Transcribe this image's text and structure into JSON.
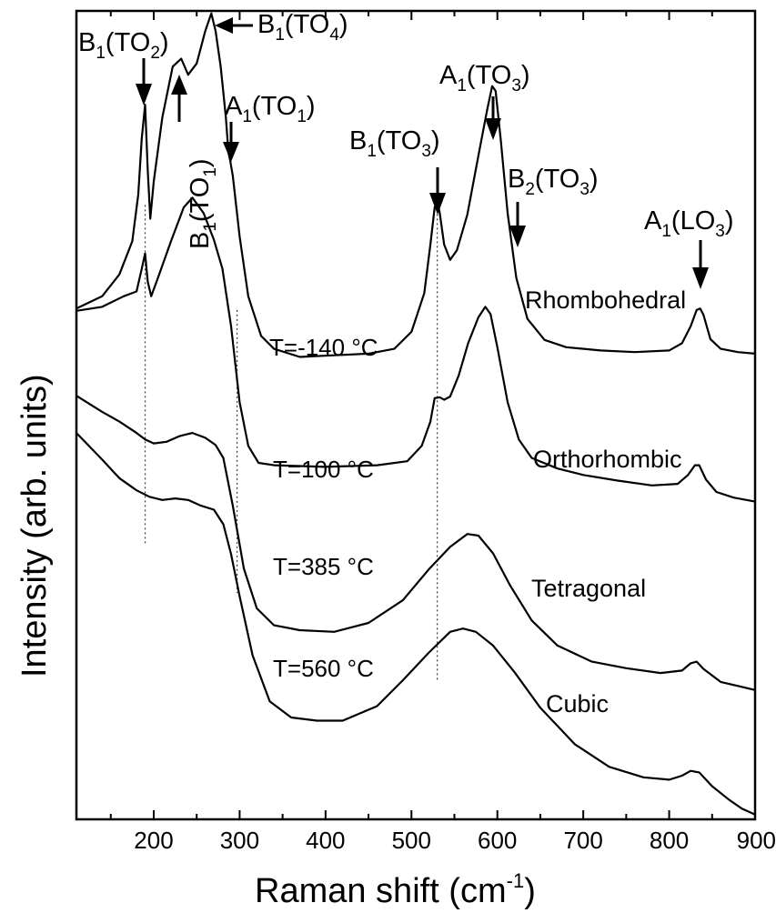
{
  "chart_data": {
    "type": "line",
    "title": "",
    "xlabel": "Raman shift (cm",
    "xlabel_sup": "-1",
    "xlabel_close": ")",
    "ylabel": "Intensity (arb. units)",
    "xlim": [
      110,
      900
    ],
    "ylim": [
      0,
      100
    ],
    "x_major_ticks": [
      200,
      300,
      400,
      500,
      600,
      700,
      800,
      900
    ],
    "x_tick_labels": [
      "200",
      "300",
      "400",
      "500",
      "600",
      "700",
      "800",
      "900"
    ],
    "x_minor_ticks": [
      150,
      250,
      350,
      450,
      550,
      650,
      750,
      850
    ],
    "yticks_shown": false,
    "grid": false,
    "guide_lines_x": [
      190,
      297,
      530
    ],
    "series": [
      {
        "name": "Rhombohedral",
        "condition": "T=-140 °C",
        "points": [
          [
            110,
            63.2
          ],
          [
            140,
            64.7
          ],
          [
            160,
            67.4
          ],
          [
            175,
            71.5
          ],
          [
            182,
            77.3
          ],
          [
            186,
            84.2
          ],
          [
            190,
            88.4
          ],
          [
            193,
            80.3
          ],
          [
            196,
            74.3
          ],
          [
            200,
            78.9
          ],
          [
            210,
            86.8
          ],
          [
            222,
            93.1
          ],
          [
            232,
            94.1
          ],
          [
            240,
            92.1
          ],
          [
            250,
            93.5
          ],
          [
            260,
            97.5
          ],
          [
            267,
            99.7
          ],
          [
            272,
            97.5
          ],
          [
            278,
            93.1
          ],
          [
            284,
            86.8
          ],
          [
            287,
            82.5
          ],
          [
            289,
            81.5
          ],
          [
            292,
            79.6
          ],
          [
            300,
            72.1
          ],
          [
            310,
            64.7
          ],
          [
            325,
            59.8
          ],
          [
            340,
            58.2
          ],
          [
            370,
            57.2
          ],
          [
            410,
            57.4
          ],
          [
            450,
            57.6
          ],
          [
            480,
            58.2
          ],
          [
            500,
            60.3
          ],
          [
            515,
            65.1
          ],
          [
            522,
            71.1
          ],
          [
            527,
            75.7
          ],
          [
            530,
            76.6
          ],
          [
            533,
            75.0
          ],
          [
            538,
            71.1
          ],
          [
            545,
            69.2
          ],
          [
            553,
            70.4
          ],
          [
            565,
            74.8
          ],
          [
            578,
            82.1
          ],
          [
            588,
            87.7
          ],
          [
            594,
            90.7
          ],
          [
            598,
            90.1
          ],
          [
            604,
            84.0
          ],
          [
            612,
            75.0
          ],
          [
            622,
            67.0
          ],
          [
            635,
            61.9
          ],
          [
            655,
            59.3
          ],
          [
            680,
            58.4
          ],
          [
            720,
            58.0
          ],
          [
            760,
            57.8
          ],
          [
            800,
            58.0
          ],
          [
            815,
            58.9
          ],
          [
            825,
            61.0
          ],
          [
            832,
            63.0
          ],
          [
            836,
            63.2
          ],
          [
            840,
            62.4
          ],
          [
            848,
            59.4
          ],
          [
            860,
            58.2
          ],
          [
            880,
            57.8
          ],
          [
            900,
            57.6
          ]
        ]
      },
      {
        "name": "Orthorhombic",
        "condition": "T=100 °C",
        "points": [
          [
            110,
            62.9
          ],
          [
            140,
            63.4
          ],
          [
            165,
            64.7
          ],
          [
            180,
            65.3
          ],
          [
            186,
            68.1
          ],
          [
            190,
            70.0
          ],
          [
            193,
            66.5
          ],
          [
            197,
            64.7
          ],
          [
            205,
            67.0
          ],
          [
            220,
            71.5
          ],
          [
            235,
            75.7
          ],
          [
            245,
            76.9
          ],
          [
            258,
            75.0
          ],
          [
            270,
            71.7
          ],
          [
            280,
            68.1
          ],
          [
            290,
            61.0
          ],
          [
            300,
            51.6
          ],
          [
            310,
            46.2
          ],
          [
            322,
            44.1
          ],
          [
            340,
            43.8
          ],
          [
            400,
            43.6
          ],
          [
            460,
            43.8
          ],
          [
            495,
            44.3
          ],
          [
            512,
            46.2
          ],
          [
            522,
            49.2
          ],
          [
            527,
            52.1
          ],
          [
            533,
            52.2
          ],
          [
            538,
            51.9
          ],
          [
            545,
            52.3
          ],
          [
            555,
            54.9
          ],
          [
            566,
            58.9
          ],
          [
            578,
            62.1
          ],
          [
            586,
            63.4
          ],
          [
            592,
            62.5
          ],
          [
            600,
            58.4
          ],
          [
            612,
            51.6
          ],
          [
            625,
            47.0
          ],
          [
            640,
            44.7
          ],
          [
            670,
            43.4
          ],
          [
            700,
            42.6
          ],
          [
            740,
            41.9
          ],
          [
            780,
            41.3
          ],
          [
            810,
            41.5
          ],
          [
            822,
            42.6
          ],
          [
            830,
            43.8
          ],
          [
            835,
            43.8
          ],
          [
            843,
            42.0
          ],
          [
            855,
            40.5
          ],
          [
            875,
            39.8
          ],
          [
            900,
            39.3
          ]
        ]
      },
      {
        "name": "Tetragonal",
        "condition": "T=385 °C",
        "points": [
          [
            110,
            52.4
          ],
          [
            140,
            50.4
          ],
          [
            160,
            49.2
          ],
          [
            180,
            47.8
          ],
          [
            190,
            47.0
          ],
          [
            200,
            46.5
          ],
          [
            215,
            46.7
          ],
          [
            230,
            47.4
          ],
          [
            245,
            47.8
          ],
          [
            260,
            47.2
          ],
          [
            272,
            46.3
          ],
          [
            281,
            44.7
          ],
          [
            292,
            38.8
          ],
          [
            305,
            31.0
          ],
          [
            320,
            26.1
          ],
          [
            340,
            24.0
          ],
          [
            370,
            23.4
          ],
          [
            410,
            23.2
          ],
          [
            450,
            24.3
          ],
          [
            490,
            27.1
          ],
          [
            520,
            30.9
          ],
          [
            545,
            33.7
          ],
          [
            565,
            35.3
          ],
          [
            578,
            35.1
          ],
          [
            595,
            32.9
          ],
          [
            615,
            28.9
          ],
          [
            640,
            24.6
          ],
          [
            670,
            21.5
          ],
          [
            710,
            19.5
          ],
          [
            750,
            18.7
          ],
          [
            790,
            18.1
          ],
          [
            815,
            18.4
          ],
          [
            825,
            19.3
          ],
          [
            832,
            19.5
          ],
          [
            840,
            18.6
          ],
          [
            860,
            17.0
          ],
          [
            880,
            16.5
          ],
          [
            900,
            16.0
          ]
        ]
      },
      {
        "name": "Cubic",
        "condition": "T=560 °C",
        "points": [
          [
            110,
            47.8
          ],
          [
            140,
            44.5
          ],
          [
            160,
            42.2
          ],
          [
            180,
            40.7
          ],
          [
            195,
            39.9
          ],
          [
            210,
            39.5
          ],
          [
            225,
            39.7
          ],
          [
            240,
            39.5
          ],
          [
            255,
            38.8
          ],
          [
            270,
            38.3
          ],
          [
            281,
            36.5
          ],
          [
            290,
            32.8
          ],
          [
            300,
            27.6
          ],
          [
            315,
            20.3
          ],
          [
            335,
            14.6
          ],
          [
            360,
            12.6
          ],
          [
            390,
            12.2
          ],
          [
            420,
            12.2
          ],
          [
            460,
            14.0
          ],
          [
            490,
            17.2
          ],
          [
            520,
            20.6
          ],
          [
            545,
            23.2
          ],
          [
            560,
            23.6
          ],
          [
            575,
            23.2
          ],
          [
            595,
            21.5
          ],
          [
            620,
            18.2
          ],
          [
            650,
            13.8
          ],
          [
            690,
            9.3
          ],
          [
            730,
            6.5
          ],
          [
            770,
            5.2
          ],
          [
            800,
            4.9
          ],
          [
            815,
            5.4
          ],
          [
            825,
            6.0
          ],
          [
            835,
            5.8
          ],
          [
            850,
            4.1
          ],
          [
            870,
            2.4
          ],
          [
            885,
            1.3
          ],
          [
            900,
            0.6
          ]
        ]
      }
    ],
    "phase_labels": [
      "Rhombohedral",
      "Orthorhombic",
      "Tetragonal",
      "Cubic"
    ],
    "annotations": [
      {
        "id": "b1-to2",
        "main": "B",
        "sub": "1",
        "rest": "(TO",
        "sub2": "2",
        "close": ")"
      },
      {
        "id": "b1-to1",
        "main": "B",
        "sub": "1",
        "rest": "(TO",
        "sub2": "1",
        "close": ")"
      },
      {
        "id": "b1-to4",
        "main": "B",
        "sub": "1",
        "rest": "(TO",
        "sub2": "4",
        "close": ")"
      },
      {
        "id": "a1-to1",
        "main": "A",
        "sub": "1",
        "rest": "(TO",
        "sub2": "1",
        "close": ")"
      },
      {
        "id": "b1-to3",
        "main": "B",
        "sub": "1",
        "rest": "(TO",
        "sub2": "3",
        "close": ")"
      },
      {
        "id": "a1-to3",
        "main": "A",
        "sub": "1",
        "rest": "(TO",
        "sub2": "3",
        "close": ")"
      },
      {
        "id": "b2-to3",
        "main": "B",
        "sub": "2",
        "rest": "(TO",
        "sub2": "3",
        "close": ")"
      },
      {
        "id": "a1-lo3",
        "main": "A",
        "sub": "1",
        "rest": "(LO",
        "sub2": "3",
        "close": ")"
      }
    ]
  }
}
